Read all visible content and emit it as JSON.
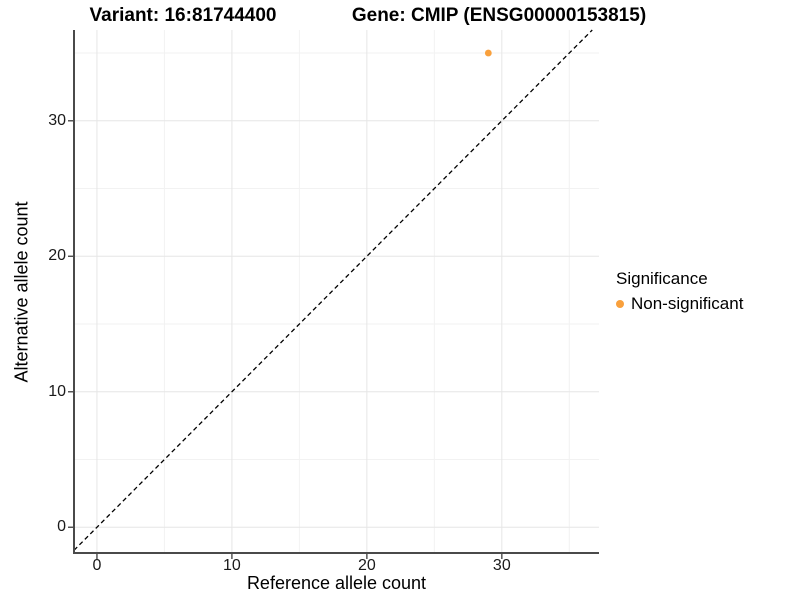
{
  "chart_data": {
    "type": "scatter",
    "titles": {
      "variant": "Variant: 16:81744400",
      "gene": "Gene: CMIP (ENSG00000153815)"
    },
    "xlabel": "Reference allele count",
    "ylabel": "Alternative allele count",
    "x_ticks": [
      0,
      10,
      20,
      30
    ],
    "y_ticks": [
      0,
      10,
      20,
      30
    ],
    "x_minor_ticks": [
      5,
      15,
      25,
      35
    ],
    "y_minor_ticks": [
      5,
      15,
      25,
      35
    ],
    "xlim": [
      -1.7,
      37.2
    ],
    "ylim": [
      -1.9,
      36.7
    ],
    "grid": "major_and_minor",
    "legend_position": "right",
    "reference_line": {
      "type": "identity",
      "slope": 1,
      "intercept": 0,
      "style": "dashed",
      "color": "#000000"
    },
    "series": [
      {
        "name": "Non-significant",
        "color": "#F9A03C",
        "points": [
          {
            "x": 29,
            "y": 35
          }
        ]
      }
    ],
    "legend": {
      "title": "Significance",
      "items": [
        {
          "label": "Non-significant",
          "color": "#F9A03C"
        }
      ]
    },
    "colors": {
      "grid_major": "#E6E6E6",
      "grid_minor": "#F2F2F2",
      "axis": "#4A4A4A",
      "text": "#000000",
      "background": "#FFFFFF"
    }
  }
}
